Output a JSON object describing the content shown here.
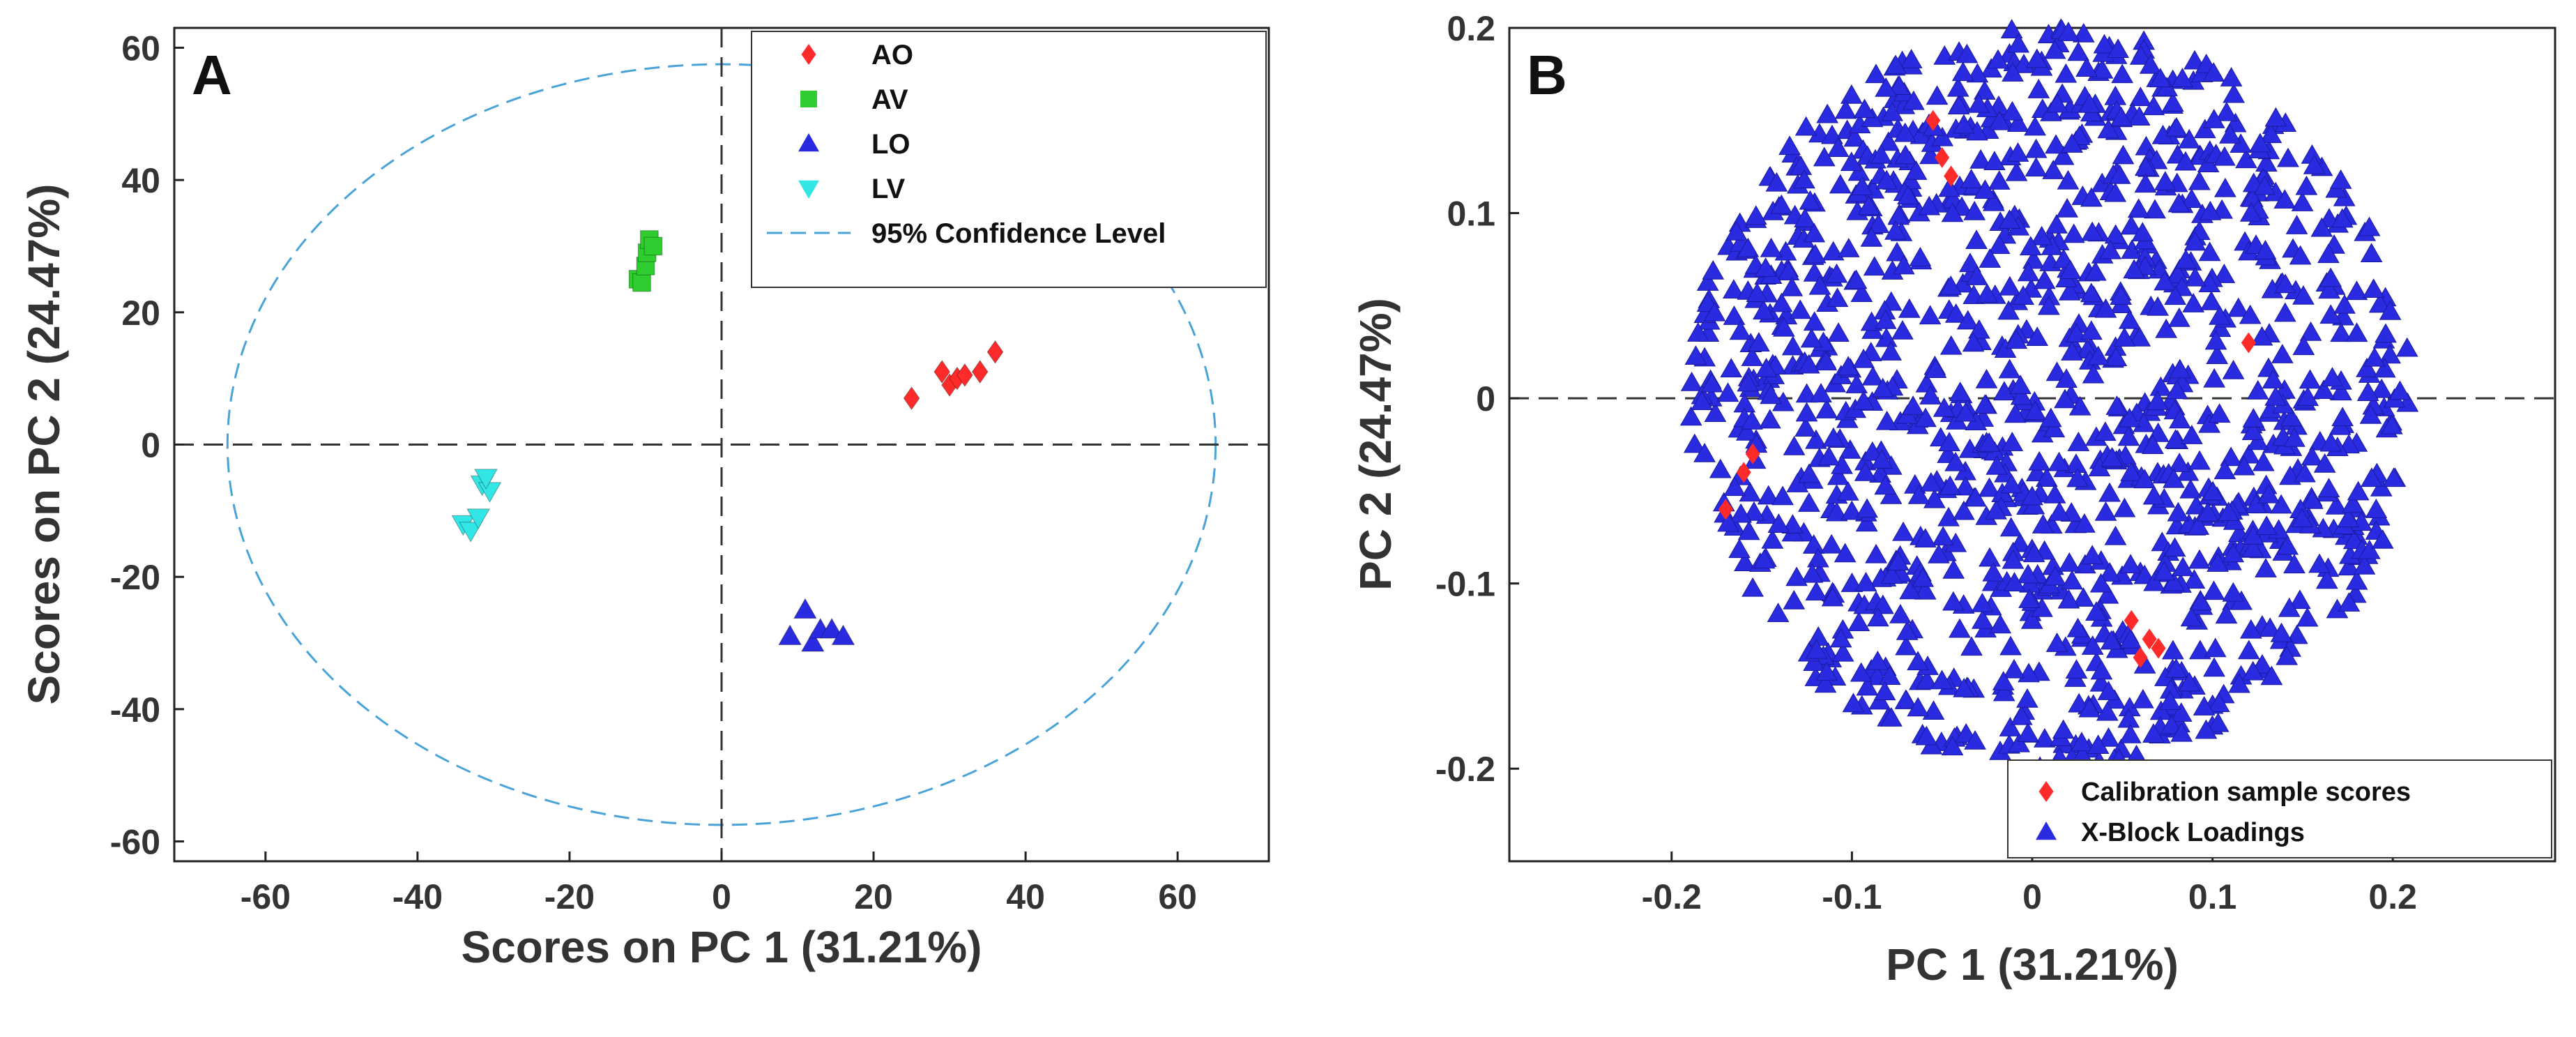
{
  "chart_data": [
    {
      "panel": "A",
      "type": "scatter",
      "xlabel": "Scores on PC 1 (31.21%)",
      "ylabel": "Scores on PC 2 (24.47%)",
      "xlim": [
        -72,
        72
      ],
      "ylim": [
        -63,
        63
      ],
      "xticks": [
        -60,
        -40,
        -20,
        0,
        20,
        40,
        60
      ],
      "yticks": [
        -60,
        -40,
        -20,
        0,
        20,
        40,
        60
      ],
      "grid": false,
      "legend_position": "top-right",
      "series": [
        {
          "name": "AO",
          "marker": "diamond",
          "color": "#ff2a2a",
          "points": [
            [
              25,
              7
            ],
            [
              29,
              11
            ],
            [
              30,
              9
            ],
            [
              31,
              10
            ],
            [
              32,
              10.5
            ],
            [
              34,
              11
            ],
            [
              36,
              14
            ]
          ]
        },
        {
          "name": "AV",
          "marker": "square",
          "color": "#2ecc2e",
          "points": [
            [
              -11,
              25
            ],
            [
              -10.5,
              24.5
            ],
            [
              -10,
              27
            ],
            [
              -9.8,
              29
            ],
            [
              -9.5,
              31
            ],
            [
              -9,
              30
            ]
          ]
        },
        {
          "name": "LO",
          "marker": "triangle-up",
          "color": "#2a2ae0",
          "points": [
            [
              9,
              -29
            ],
            [
              11,
              -25
            ],
            [
              12,
              -30
            ],
            [
              13,
              -28
            ],
            [
              14.5,
              -28
            ],
            [
              16,
              -29
            ]
          ]
        },
        {
          "name": "LV",
          "marker": "triangle-down",
          "color": "#33e6e6",
          "points": [
            [
              -34,
              -12
            ],
            [
              -33,
              -13
            ],
            [
              -32,
              -11
            ],
            [
              -31.5,
              -6
            ],
            [
              -30.5,
              -7
            ],
            [
              -31,
              -5
            ]
          ]
        }
      ],
      "confidence_ellipse": {
        "label": "95% Confidence Level",
        "center": [
          0,
          0
        ],
        "rx": 65,
        "ry": 57.5,
        "color": "#4aa3d8"
      },
      "reference_lines": {
        "x": 0,
        "y": 0
      }
    },
    {
      "panel": "B",
      "type": "scatter",
      "xlabel": "PC 1 (31.21%)",
      "ylabel": "PC 2 (24.47%)",
      "xlim": [
        -0.29,
        0.29
      ],
      "ylim": [
        -0.25,
        0.2
      ],
      "xticks": [
        -0.2,
        -0.1,
        0,
        0.1,
        0.2
      ],
      "xtick_labels": [
        "-0.2",
        "-0.1",
        "0",
        "0.1",
        "0.2"
      ],
      "yticks": [
        -0.2,
        -0.1,
        0,
        0.1,
        0.2
      ],
      "ytick_labels": [
        "-0.2",
        "-0.1",
        "0",
        "0.1",
        "0.2"
      ],
      "grid": false,
      "legend_position": "bottom-right",
      "series": [
        {
          "name": "X-Block Loadings",
          "marker": "triangle-up",
          "color": "#2a2ae0",
          "region": {
            "center": [
              0.01,
              0.0
            ],
            "rx": 0.2,
            "ry": 0.2
          },
          "approx_count": 1300
        },
        {
          "name": "Calibration sample scores",
          "marker": "diamond",
          "color": "#ff2a2a",
          "points": [
            [
              -0.05,
              0.13
            ],
            [
              -0.055,
              0.15
            ],
            [
              -0.045,
              0.12
            ],
            [
              0.12,
              0.03
            ],
            [
              -0.16,
              -0.04
            ],
            [
              -0.155,
              -0.03
            ],
            [
              -0.17,
              -0.06
            ],
            [
              0.06,
              -0.14
            ],
            [
              0.065,
              -0.13
            ],
            [
              0.07,
              -0.135
            ],
            [
              0.055,
              -0.12
            ]
          ]
        }
      ],
      "reference_lines": {
        "y": 0
      }
    }
  ]
}
